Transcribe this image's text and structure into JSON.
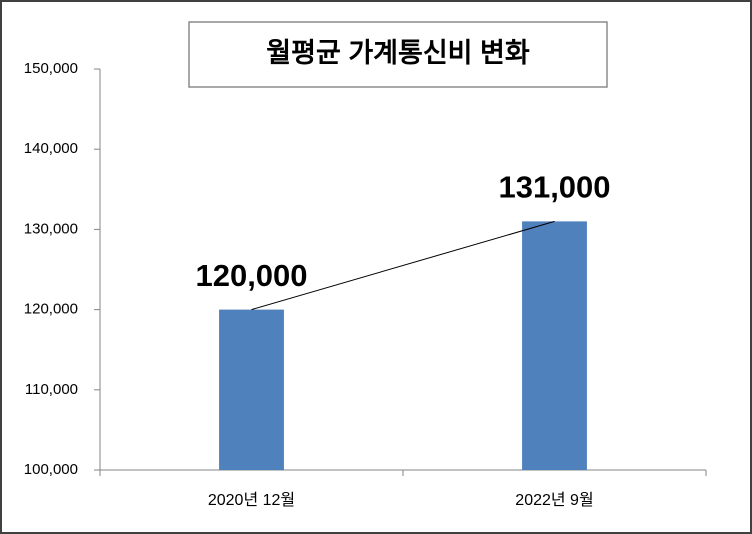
{
  "chart_data": {
    "type": "bar",
    "title": "월평균 가계통신비 변화",
    "categories": [
      "2020년 12월",
      "2022년 9월"
    ],
    "values": [
      120000,
      131000
    ],
    "value_labels": [
      "120,000",
      "131,000"
    ],
    "color": "#4f81bd",
    "ylim": [
      100000,
      150000
    ],
    "yticks": [
      {
        "value": 100000,
        "label": "100,000"
      },
      {
        "value": 110000,
        "label": "110,000"
      },
      {
        "value": 120000,
        "label": "120,000"
      },
      {
        "value": 130000,
        "label": "130,000"
      },
      {
        "value": 140000,
        "label": "140,000"
      },
      {
        "value": 150000,
        "label": "150,000"
      }
    ]
  }
}
